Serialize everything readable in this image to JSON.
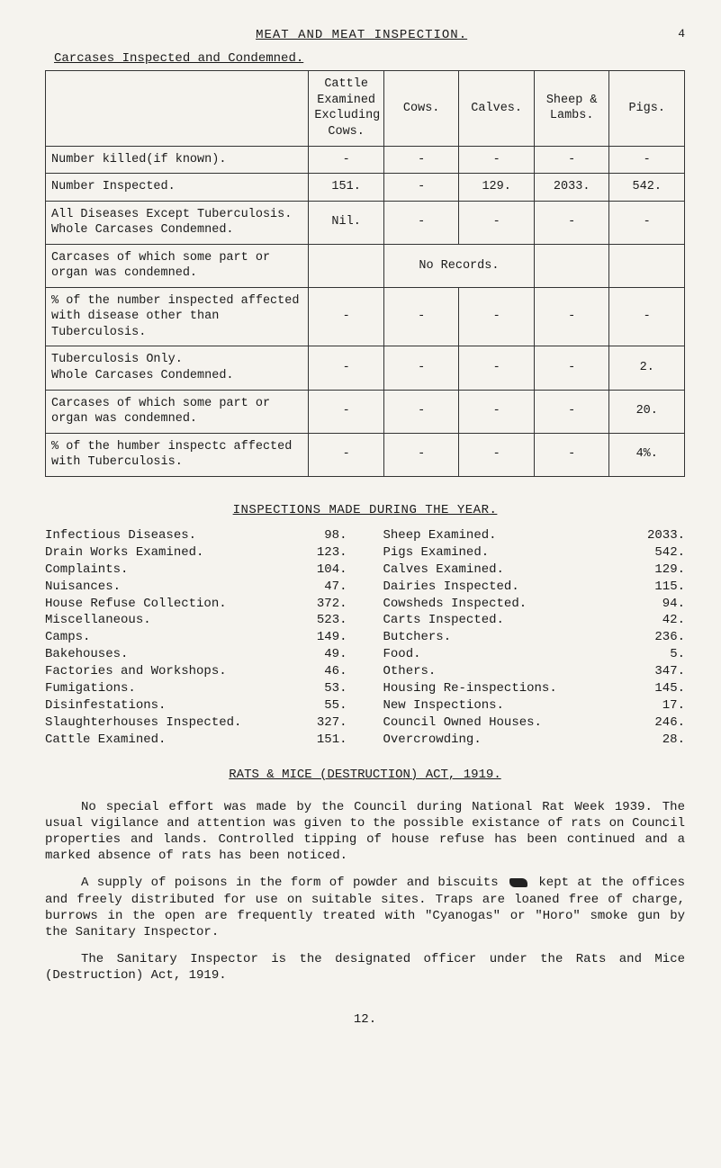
{
  "page_top_num": "4",
  "title": "MEAT AND MEAT INSPECTION.",
  "section1_title": "Carcases Inspected and Condemned.",
  "table": {
    "head": {
      "c1": "Cattle Examined Excluding Cows.",
      "c2": "Cows.",
      "c3": "Calves.",
      "c4": "Sheep & Lambs.",
      "c5": "Pigs."
    },
    "rows": [
      {
        "label": "Number killed(if known).",
        "c1": "-",
        "c2": "-",
        "c3": "-",
        "c4": "-",
        "c5": "-"
      },
      {
        "label": "Number Inspected.",
        "c1": "151.",
        "c2": "-",
        "c3": "129.",
        "c4": "2033.",
        "c5": "542."
      },
      {
        "label": "All Diseases Except Tuberculosis.\nWhole Carcases Condemned.",
        "c1": "Nil.",
        "c2": "-",
        "c3": "-",
        "c4": "-",
        "c5": "-"
      },
      {
        "label": "Carcases of which some part or organ was condemned.",
        "c1": "",
        "c2": "No Records.",
        "c3": "",
        "c4": "",
        "c5": ""
      },
      {
        "label": "% of the number inspected affected with disease other than Tuberculosis.",
        "c1": "-",
        "c2": "-",
        "c3": "-",
        "c4": "-",
        "c5": "-"
      },
      {
        "label": "Tuberculosis Only.\nWhole Carcases Condemned.",
        "c1": "-",
        "c2": "-",
        "c3": "-",
        "c4": "-",
        "c5": "2."
      },
      {
        "label": "Carcases of which some part or organ was condemned.",
        "c1": "-",
        "c2": "-",
        "c3": "-",
        "c4": "-",
        "c5": "20."
      },
      {
        "label": "% of the humber inspectc affected with Tuberculosis.",
        "c1": "-",
        "c2": "-",
        "c3": "-",
        "c4": "-",
        "c5": "4%."
      }
    ]
  },
  "insp_heading": "INSPECTIONS MADE DURING THE YEAR.",
  "left_items": [
    {
      "label": "Infectious Diseases.",
      "value": "98."
    },
    {
      "label": "Drain Works Examined.",
      "value": "123."
    },
    {
      "label": "Complaints.",
      "value": "104."
    },
    {
      "label": "Nuisances.",
      "value": "47."
    },
    {
      "label": "House Refuse Collection.",
      "value": "372."
    },
    {
      "label": "Miscellaneous.",
      "value": "523."
    },
    {
      "label": "Camps.",
      "value": "149."
    },
    {
      "label": "Bakehouses.",
      "value": "49."
    },
    {
      "label": "Factories and Workshops.",
      "value": "46."
    },
    {
      "label": "Fumigations.",
      "value": "53."
    },
    {
      "label": "Disinfestations.",
      "value": "55."
    },
    {
      "label": "Slaughterhouses Inspected.",
      "value": "327."
    },
    {
      "label": "Cattle Examined.",
      "value": "151."
    }
  ],
  "right_items": [
    {
      "label": "Sheep Examined.",
      "value": "2033."
    },
    {
      "label": "Pigs Examined.",
      "value": "542."
    },
    {
      "label": "Calves Examined.",
      "value": "129."
    },
    {
      "label": "Dairies Inspected.",
      "value": "115."
    },
    {
      "label": "Cowsheds Inspected.",
      "value": "94."
    },
    {
      "label": "Carts Inspected.",
      "value": "42."
    },
    {
      "label": "Butchers.",
      "value": "236."
    },
    {
      "label": "Food.",
      "value": "5."
    },
    {
      "label": "Others.",
      "value": "347."
    },
    {
      "label": "Housing Re-inspections.",
      "value": "145."
    },
    {
      "label": "New Inspections.",
      "value": "17."
    },
    {
      "label": "Council Owned Houses.",
      "value": "246."
    },
    {
      "label": "Overcrowding.",
      "value": "28."
    }
  ],
  "act_heading": "RATS & MICE (DESTRUCTION) ACT, 1919.",
  "para1_a": "No special effort was made by the Council during National Rat Week 1939. The usual vigilance and attention was given to the possible existance of rats on Council properties and lands. Controlled tipping of house refuse has been continued and a marked absence of rats has been noticed.",
  "para2_a": "A supply of poisons in the form of powder and biscuits ",
  "para2_b": " kept at the offices and freely distributed for use on suitable sites. Traps are loaned free of charge, burrows in the open are frequently treated with \"Cyanogas\" or \"Horo\" smoke gun by the Sanitary Inspector.",
  "para3": "The Sanitary Inspector is the designated officer under the Rats and Mice (Destruction) Act, 1919.",
  "page_bottom": "12."
}
